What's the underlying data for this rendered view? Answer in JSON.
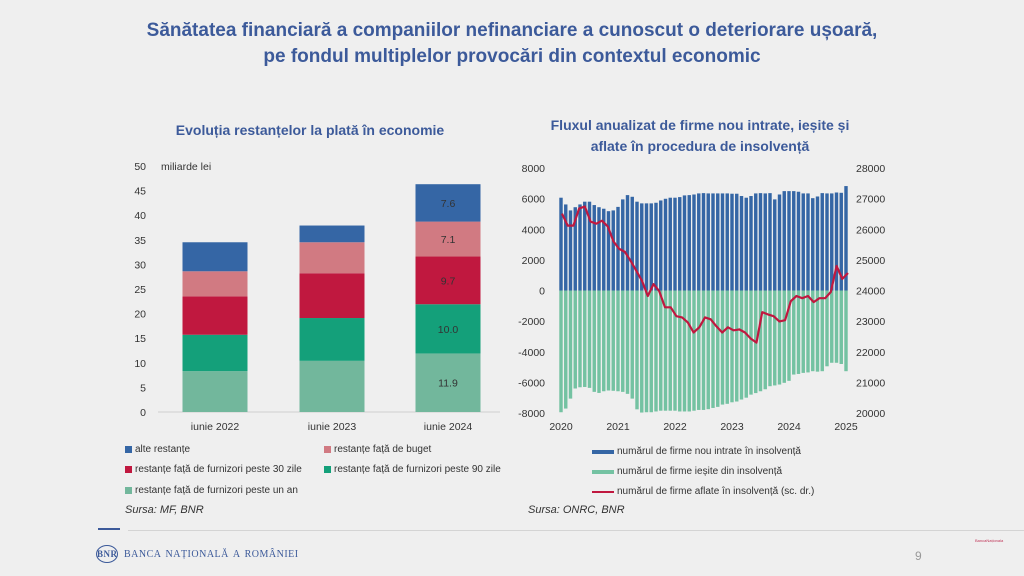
{
  "slide": {
    "title_line1": "Sănătatea financiară a companiilor nefinanciare a cunoscut o deteriorare ușoară,",
    "title_line2": "pe fondul multiplelor provocări din contextul economic",
    "footer_brand": "Banca Națională a României",
    "logo_text": "BNR",
    "page_number": "9",
    "stamp_text": "BancaNaționala"
  },
  "chart_data": [
    {
      "type": "bar",
      "stacked": true,
      "title": "Evoluția restanțelor la plată în economie",
      "unit_label": "miliarde lei",
      "categories": [
        "iunie 2022",
        "iunie 2023",
        "iunie 2024"
      ],
      "ylim": [
        0,
        50
      ],
      "yticks": [
        0,
        5,
        10,
        15,
        20,
        25,
        30,
        35,
        40,
        45,
        50
      ],
      "series": [
        {
          "name": "restanțe față de furnizori peste un an",
          "color": "#72b79c",
          "values": [
            8.3,
            10.4,
            11.9
          ],
          "labels": [
            null,
            null,
            "11.9"
          ]
        },
        {
          "name": "restanțe față de furnizori peste 90 zile",
          "color": "#14a07a",
          "values": [
            7.4,
            8.7,
            10.0
          ],
          "labels": [
            null,
            null,
            "10.0"
          ]
        },
        {
          "name": "restanțe față de furnizori peste 30 zile",
          "color": "#c0183f",
          "values": [
            7.8,
            9.1,
            9.7
          ],
          "labels": [
            null,
            null,
            "9.7"
          ]
        },
        {
          "name": "restanțe față de buget",
          "color": "#d17a82",
          "values": [
            5.1,
            6.3,
            7.1
          ],
          "labels": [
            null,
            null,
            "7.1"
          ]
        },
        {
          "name": "alte restanțe",
          "color": "#3566a5",
          "values": [
            5.9,
            3.4,
            7.6
          ],
          "labels": [
            null,
            null,
            "7.6"
          ]
        }
      ],
      "legend": [
        "alte restanțe",
        "restanțe față de buget",
        "restanțe față de furnizori peste 30 zile",
        "restanțe față de furnizori peste 90 zile",
        "restanțe față de furnizori peste un an"
      ],
      "source": "Sursa: MF, BNR"
    },
    {
      "type": "bar+line",
      "title_line1": "Fluxul anualizat de firme nou intrate, ieșite și",
      "title_line2": "aflate în procedura de insolvență",
      "x_ticks": [
        "2020",
        "2021",
        "2022",
        "2023",
        "2024",
        "2025"
      ],
      "y_left": {
        "range": [
          -8000,
          8000
        ],
        "ticks": [
          -8000,
          -6000,
          -4000,
          -2000,
          0,
          2000,
          4000,
          6000,
          8000
        ]
      },
      "y_right": {
        "range": [
          20000,
          28000
        ],
        "ticks": [
          20000,
          21000,
          22000,
          23000,
          24000,
          25000,
          26000,
          27000,
          28000
        ]
      },
      "x_period": "monthly Jan 2020 – Jan 2025",
      "series": [
        {
          "name": "numărul de firme nou intrate în insolvență",
          "kind": "bar",
          "axis": "left",
          "color": "#3566a5",
          "values": [
            6060,
            5620,
            5230,
            5440,
            5620,
            5800,
            5800,
            5580,
            5440,
            5340,
            5180,
            5230,
            5460,
            5950,
            6230,
            6120,
            5800,
            5690,
            5690,
            5690,
            5730,
            5880,
            5990,
            6060,
            6060,
            6100,
            6210,
            6230,
            6270,
            6340,
            6360,
            6340,
            6340,
            6340,
            6340,
            6340,
            6320,
            6320,
            6170,
            6060,
            6170,
            6340,
            6360,
            6340,
            6360,
            5950,
            6270,
            6490,
            6490,
            6490,
            6450,
            6340,
            6340,
            6030,
            6140,
            6360,
            6340,
            6340,
            6400,
            6380,
            6820
          ]
        },
        {
          "name": "numărul de firme ieșite din insolvență",
          "kind": "bar",
          "axis": "left",
          "color": "#74c2a2",
          "values": [
            -7950,
            -7710,
            -7060,
            -6400,
            -6320,
            -6300,
            -6360,
            -6620,
            -6690,
            -6580,
            -6530,
            -6550,
            -6580,
            -6620,
            -6750,
            -7060,
            -7760,
            -7970,
            -7950,
            -7950,
            -7900,
            -7850,
            -7850,
            -7850,
            -7850,
            -7900,
            -7900,
            -7900,
            -7850,
            -7800,
            -7800,
            -7750,
            -7670,
            -7600,
            -7450,
            -7400,
            -7300,
            -7250,
            -7120,
            -7000,
            -6800,
            -6700,
            -6580,
            -6450,
            -6250,
            -6200,
            -6140,
            -6030,
            -5900,
            -5490,
            -5450,
            -5380,
            -5350,
            -5270,
            -5300,
            -5270,
            -4950,
            -4720,
            -4720,
            -4800,
            -5270
          ]
        },
        {
          "name": "numărul de firme aflate în insolvență (sc. dr.)",
          "kind": "line",
          "axis": "right",
          "color": "#c0183f",
          "values": [
            26510,
            26120,
            26120,
            26680,
            26740,
            26250,
            26180,
            26280,
            26090,
            25600,
            25360,
            25260,
            24970,
            24640,
            24310,
            23820,
            24210,
            23980,
            23450,
            23450,
            23160,
            23120,
            22960,
            22630,
            22800,
            23120,
            23060,
            22830,
            22630,
            22800,
            22700,
            22730,
            22630,
            22430,
            22300,
            23290,
            23220,
            23160,
            22990,
            23030,
            23650,
            23820,
            23750,
            23820,
            23620,
            23750,
            23750,
            23950,
            24800,
            24380,
            24570
          ]
        }
      ],
      "source": "Sursa: ONRC, BNR"
    }
  ]
}
